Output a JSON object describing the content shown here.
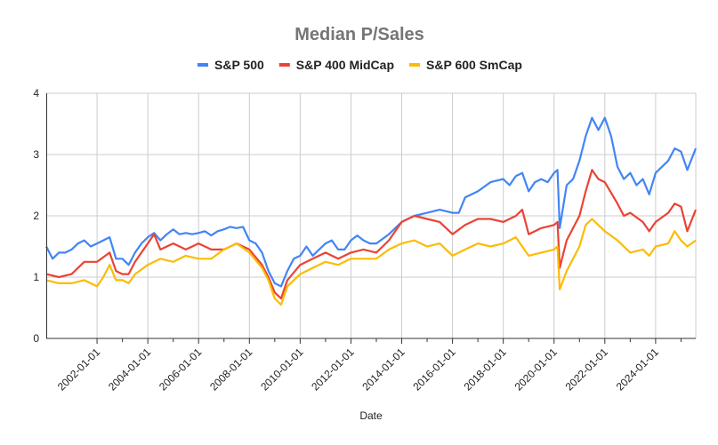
{
  "chart_data": {
    "type": "line",
    "title": "Median P/Sales",
    "xlabel": "Date",
    "ylabel": "",
    "ylim": [
      0,
      4
    ],
    "yticks": [
      "0",
      "1",
      "2",
      "3",
      "4"
    ],
    "xlim": [
      "2000-01-01",
      "2025-08-01"
    ],
    "xticks": [
      "2002-01-01",
      "2004-01-01",
      "2006-01-01",
      "2008-01-01",
      "2010-01-01",
      "2012-01-01",
      "2014-01-01",
      "2016-01-01",
      "2018-01-01",
      "2020-01-01",
      "2022-01-01",
      "2024-01-01"
    ],
    "grid": true,
    "legend_position": "top",
    "series": [
      {
        "name": "S&P 500",
        "color": "#4285f4",
        "points": [
          [
            "2000-01-01",
            1.5
          ],
          [
            "2000-04-01",
            1.3
          ],
          [
            "2000-07-01",
            1.4
          ],
          [
            "2000-10-01",
            1.4
          ],
          [
            "2001-01-01",
            1.45
          ],
          [
            "2001-04-01",
            1.55
          ],
          [
            "2001-07-01",
            1.6
          ],
          [
            "2001-10-01",
            1.5
          ],
          [
            "2002-01-01",
            1.55
          ],
          [
            "2002-04-01",
            1.6
          ],
          [
            "2002-07-01",
            1.65
          ],
          [
            "2002-10-01",
            1.3
          ],
          [
            "2003-01-01",
            1.3
          ],
          [
            "2003-04-01",
            1.2
          ],
          [
            "2003-07-01",
            1.4
          ],
          [
            "2003-10-01",
            1.55
          ],
          [
            "2004-01-01",
            1.65
          ],
          [
            "2004-04-01",
            1.72
          ],
          [
            "2004-07-01",
            1.6
          ],
          [
            "2004-10-01",
            1.7
          ],
          [
            "2005-01-01",
            1.78
          ],
          [
            "2005-04-01",
            1.7
          ],
          [
            "2005-07-01",
            1.72
          ],
          [
            "2005-10-01",
            1.7
          ],
          [
            "2006-01-01",
            1.72
          ],
          [
            "2006-04-01",
            1.75
          ],
          [
            "2006-07-01",
            1.68
          ],
          [
            "2006-10-01",
            1.75
          ],
          [
            "2007-01-01",
            1.78
          ],
          [
            "2007-04-01",
            1.82
          ],
          [
            "2007-07-01",
            1.8
          ],
          [
            "2007-10-01",
            1.82
          ],
          [
            "2008-01-01",
            1.6
          ],
          [
            "2008-04-01",
            1.55
          ],
          [
            "2008-07-01",
            1.4
          ],
          [
            "2008-10-01",
            1.1
          ],
          [
            "2009-01-01",
            0.9
          ],
          [
            "2009-04-01",
            0.85
          ],
          [
            "2009-07-01",
            1.1
          ],
          [
            "2009-10-01",
            1.3
          ],
          [
            "2010-01-01",
            1.35
          ],
          [
            "2010-04-01",
            1.5
          ],
          [
            "2010-07-01",
            1.35
          ],
          [
            "2010-10-01",
            1.45
          ],
          [
            "2011-01-01",
            1.55
          ],
          [
            "2011-04-01",
            1.6
          ],
          [
            "2011-07-01",
            1.45
          ],
          [
            "2011-10-01",
            1.45
          ],
          [
            "2012-01-01",
            1.6
          ],
          [
            "2012-04-01",
            1.68
          ],
          [
            "2012-07-01",
            1.6
          ],
          [
            "2012-10-01",
            1.55
          ],
          [
            "2013-01-01",
            1.55
          ],
          [
            "2013-07-01",
            1.7
          ],
          [
            "2014-01-01",
            1.9
          ],
          [
            "2014-07-01",
            2.0
          ],
          [
            "2015-01-01",
            2.05
          ],
          [
            "2015-07-01",
            2.1
          ],
          [
            "2016-01-01",
            2.05
          ],
          [
            "2016-04-01",
            2.05
          ],
          [
            "2016-07-01",
            2.3
          ],
          [
            "2017-01-01",
            2.4
          ],
          [
            "2017-07-01",
            2.55
          ],
          [
            "2018-01-01",
            2.6
          ],
          [
            "2018-04-01",
            2.5
          ],
          [
            "2018-07-01",
            2.65
          ],
          [
            "2018-10-01",
            2.7
          ],
          [
            "2019-01-01",
            2.4
          ],
          [
            "2019-04-01",
            2.55
          ],
          [
            "2019-07-01",
            2.6
          ],
          [
            "2019-10-01",
            2.55
          ],
          [
            "2020-01-01",
            2.7
          ],
          [
            "2020-02-20",
            2.75
          ],
          [
            "2020-03-23",
            1.8
          ],
          [
            "2020-07-01",
            2.5
          ],
          [
            "2020-10-01",
            2.6
          ],
          [
            "2021-01-01",
            2.9
          ],
          [
            "2021-04-01",
            3.3
          ],
          [
            "2021-07-01",
            3.6
          ],
          [
            "2021-10-01",
            3.4
          ],
          [
            "2022-01-01",
            3.6
          ],
          [
            "2022-04-01",
            3.3
          ],
          [
            "2022-07-01",
            2.8
          ],
          [
            "2022-10-01",
            2.6
          ],
          [
            "2023-01-01",
            2.7
          ],
          [
            "2023-04-01",
            2.5
          ],
          [
            "2023-07-01",
            2.6
          ],
          [
            "2023-10-01",
            2.35
          ],
          [
            "2024-01-01",
            2.7
          ],
          [
            "2024-04-01",
            2.8
          ],
          [
            "2024-07-01",
            2.9
          ],
          [
            "2024-10-01",
            3.1
          ],
          [
            "2025-01-01",
            3.05
          ],
          [
            "2025-04-01",
            2.75
          ],
          [
            "2025-08-01",
            3.1
          ]
        ]
      },
      {
        "name": "S&P 400 MidCap",
        "color": "#ea4335",
        "points": [
          [
            "2000-01-01",
            1.05
          ],
          [
            "2000-07-01",
            1.0
          ],
          [
            "2001-01-01",
            1.05
          ],
          [
            "2001-07-01",
            1.25
          ],
          [
            "2002-01-01",
            1.25
          ],
          [
            "2002-07-01",
            1.4
          ],
          [
            "2002-10-01",
            1.1
          ],
          [
            "2003-01-01",
            1.05
          ],
          [
            "2003-04-01",
            1.05
          ],
          [
            "2003-07-01",
            1.25
          ],
          [
            "2004-01-01",
            1.55
          ],
          [
            "2004-04-01",
            1.7
          ],
          [
            "2004-07-01",
            1.45
          ],
          [
            "2005-01-01",
            1.55
          ],
          [
            "2005-07-01",
            1.45
          ],
          [
            "2006-01-01",
            1.55
          ],
          [
            "2006-07-01",
            1.45
          ],
          [
            "2007-01-01",
            1.45
          ],
          [
            "2007-07-01",
            1.55
          ],
          [
            "2008-01-01",
            1.45
          ],
          [
            "2008-07-01",
            1.2
          ],
          [
            "2008-10-01",
            1.0
          ],
          [
            "2009-01-01",
            0.75
          ],
          [
            "2009-04-01",
            0.65
          ],
          [
            "2009-07-01",
            0.95
          ],
          [
            "2010-01-01",
            1.2
          ],
          [
            "2010-07-01",
            1.3
          ],
          [
            "2011-01-01",
            1.4
          ],
          [
            "2011-07-01",
            1.3
          ],
          [
            "2012-01-01",
            1.4
          ],
          [
            "2012-07-01",
            1.45
          ],
          [
            "2013-01-01",
            1.4
          ],
          [
            "2013-07-01",
            1.6
          ],
          [
            "2014-01-01",
            1.9
          ],
          [
            "2014-07-01",
            2.0
          ],
          [
            "2015-01-01",
            1.95
          ],
          [
            "2015-07-01",
            1.9
          ],
          [
            "2016-01-01",
            1.7
          ],
          [
            "2016-07-01",
            1.85
          ],
          [
            "2017-01-01",
            1.95
          ],
          [
            "2017-07-01",
            1.95
          ],
          [
            "2018-01-01",
            1.9
          ],
          [
            "2018-07-01",
            2.0
          ],
          [
            "2018-10-01",
            2.1
          ],
          [
            "2019-01-01",
            1.7
          ],
          [
            "2019-07-01",
            1.8
          ],
          [
            "2020-01-01",
            1.85
          ],
          [
            "2020-02-20",
            1.9
          ],
          [
            "2020-03-23",
            1.15
          ],
          [
            "2020-07-01",
            1.6
          ],
          [
            "2021-01-01",
            2.0
          ],
          [
            "2021-04-01",
            2.4
          ],
          [
            "2021-07-01",
            2.75
          ],
          [
            "2021-10-01",
            2.6
          ],
          [
            "2022-01-01",
            2.55
          ],
          [
            "2022-07-01",
            2.2
          ],
          [
            "2022-10-01",
            2.0
          ],
          [
            "2023-01-01",
            2.05
          ],
          [
            "2023-07-01",
            1.9
          ],
          [
            "2023-10-01",
            1.75
          ],
          [
            "2024-01-01",
            1.9
          ],
          [
            "2024-07-01",
            2.05
          ],
          [
            "2024-10-01",
            2.2
          ],
          [
            "2025-01-01",
            2.15
          ],
          [
            "2025-04-01",
            1.75
          ],
          [
            "2025-08-01",
            2.1
          ]
        ]
      },
      {
        "name": "S&P 600 SmCap",
        "color": "#fbbc04",
        "points": [
          [
            "2000-01-01",
            0.95
          ],
          [
            "2000-07-01",
            0.9
          ],
          [
            "2001-01-01",
            0.9
          ],
          [
            "2001-07-01",
            0.95
          ],
          [
            "2002-01-01",
            0.85
          ],
          [
            "2002-04-01",
            1.0
          ],
          [
            "2002-07-01",
            1.2
          ],
          [
            "2002-10-01",
            0.95
          ],
          [
            "2003-01-01",
            0.95
          ],
          [
            "2003-04-01",
            0.9
          ],
          [
            "2003-07-01",
            1.05
          ],
          [
            "2004-01-01",
            1.2
          ],
          [
            "2004-07-01",
            1.3
          ],
          [
            "2005-01-01",
            1.25
          ],
          [
            "2005-07-01",
            1.35
          ],
          [
            "2006-01-01",
            1.3
          ],
          [
            "2006-07-01",
            1.3
          ],
          [
            "2007-01-01",
            1.45
          ],
          [
            "2007-07-01",
            1.55
          ],
          [
            "2008-01-01",
            1.4
          ],
          [
            "2008-07-01",
            1.15
          ],
          [
            "2008-10-01",
            0.95
          ],
          [
            "2009-01-01",
            0.65
          ],
          [
            "2009-04-01",
            0.55
          ],
          [
            "2009-07-01",
            0.85
          ],
          [
            "2010-01-01",
            1.05
          ],
          [
            "2010-07-01",
            1.15
          ],
          [
            "2011-01-01",
            1.25
          ],
          [
            "2011-07-01",
            1.2
          ],
          [
            "2012-01-01",
            1.3
          ],
          [
            "2012-07-01",
            1.3
          ],
          [
            "2013-01-01",
            1.3
          ],
          [
            "2013-07-01",
            1.45
          ],
          [
            "2014-01-01",
            1.55
          ],
          [
            "2014-07-01",
            1.6
          ],
          [
            "2015-01-01",
            1.5
          ],
          [
            "2015-07-01",
            1.55
          ],
          [
            "2016-01-01",
            1.35
          ],
          [
            "2016-07-01",
            1.45
          ],
          [
            "2017-01-01",
            1.55
          ],
          [
            "2017-07-01",
            1.5
          ],
          [
            "2018-01-01",
            1.55
          ],
          [
            "2018-07-01",
            1.65
          ],
          [
            "2019-01-01",
            1.35
          ],
          [
            "2019-07-01",
            1.4
          ],
          [
            "2020-01-01",
            1.45
          ],
          [
            "2020-02-20",
            1.5
          ],
          [
            "2020-03-23",
            0.8
          ],
          [
            "2020-07-01",
            1.1
          ],
          [
            "2021-01-01",
            1.5
          ],
          [
            "2021-04-01",
            1.85
          ],
          [
            "2021-07-01",
            1.95
          ],
          [
            "2022-01-01",
            1.75
          ],
          [
            "2022-07-01",
            1.6
          ],
          [
            "2023-01-01",
            1.4
          ],
          [
            "2023-07-01",
            1.45
          ],
          [
            "2023-10-01",
            1.35
          ],
          [
            "2024-01-01",
            1.5
          ],
          [
            "2024-07-01",
            1.55
          ],
          [
            "2024-10-01",
            1.75
          ],
          [
            "2025-01-01",
            1.6
          ],
          [
            "2025-04-01",
            1.5
          ],
          [
            "2025-08-01",
            1.6
          ]
        ]
      }
    ]
  }
}
